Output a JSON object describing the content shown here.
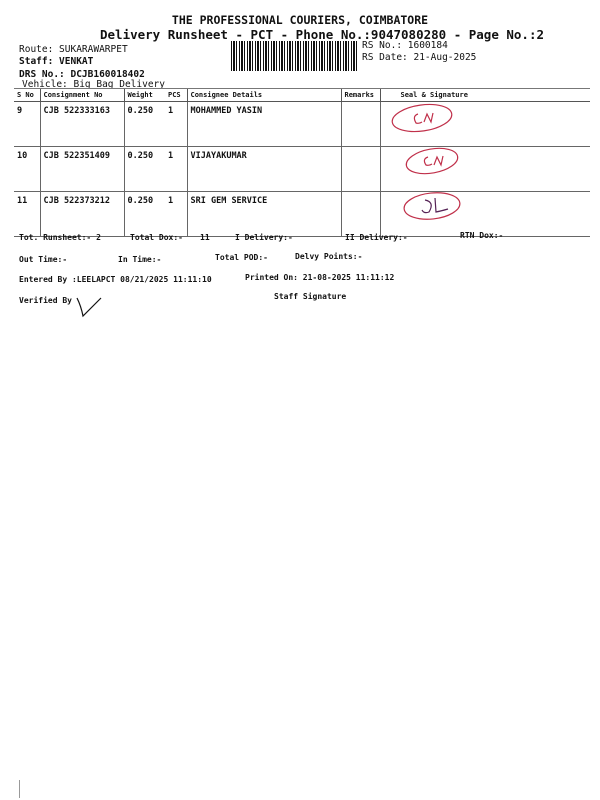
{
  "header": {
    "title": "THE PROFESSIONAL COURIERS, COIMBATORE",
    "subtitle": "Delivery Runsheet - PCT - Phone No.:9047080280 - Page No.:2",
    "route": "Route: SUKARAWARPET",
    "staff": "Staff: VENKAT",
    "drs_no": "DRS No.: DCJB160018402",
    "vehicle": "Vehicle: Big Bag Delivery",
    "rs_no": "RS No.: 1600184",
    "rs_date": "RS Date: 21-Aug-2025"
  },
  "table": {
    "columns": [
      "S No",
      "Consignment No",
      "Weight",
      "PCS",
      "Consignee Details",
      "Remarks",
      "Seal & Signature"
    ],
    "rows": [
      {
        "sno": "9",
        "consignment": "CJB 522333163",
        "weight": "0.250",
        "pcs": "1",
        "consignee": "MOHAMMED YASIN",
        "remarks": "",
        "signature": "handwritten CN"
      },
      {
        "sno": "10",
        "consignment": "CJB 522351409",
        "weight": "0.250",
        "pcs": "1",
        "consignee": "VIJAYAKUMAR",
        "remarks": "",
        "signature": "handwritten CN"
      },
      {
        "sno": "11",
        "consignment": "CJB 522373212",
        "weight": "0.250",
        "pcs": "1",
        "consignee": "SRI GEM SERVICE",
        "remarks": "",
        "signature": "handwritten DL"
      }
    ]
  },
  "footer": {
    "tot_runsheet": "Tot. Runsheet:- 2",
    "total_dox": "Total Dox:-",
    "total_dox_value": "11",
    "i_delivery": "I Delivery:-",
    "ii_delivery": "II Delivery:-",
    "rtn_dox": "RTN Dox:-",
    "out_time": "Out Time:-",
    "in_time": "In Time:-",
    "total_pod": "Total POD:-",
    "delvy_points": "Delvy Points:-",
    "entered_by": "Entered By :LEELAPCT 08/21/2025 11:11:10",
    "printed_on": "Printed On: 21-08-2025 11:11:12",
    "verified_by": "Verified By",
    "staff_signature": "Staff Signature"
  },
  "colors": {
    "ink": "#111111",
    "stamp": "#c0304a"
  }
}
